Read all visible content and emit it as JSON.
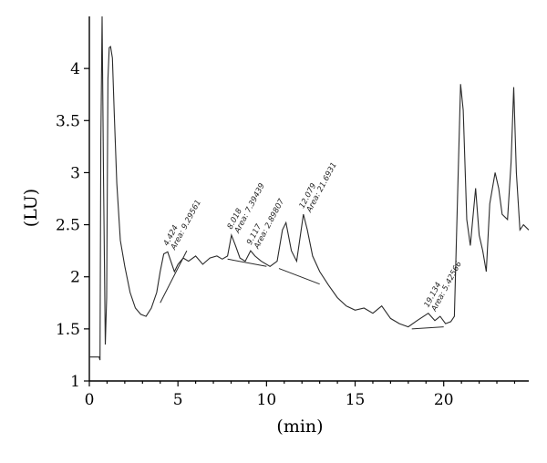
{
  "chart_data": {
    "type": "line",
    "title": "",
    "xlabel": "(min)",
    "ylabel": "(LU)",
    "xlim": [
      0,
      24.8
    ],
    "ylim": [
      1,
      4.5
    ],
    "x_ticks": [
      {
        "value": 0,
        "label": "0"
      },
      {
        "value": 5,
        "label": "5"
      },
      {
        "value": 10,
        "label": "10"
      },
      {
        "value": 15,
        "label": "15"
      },
      {
        "value": 20,
        "label": "20"
      }
    ],
    "y_ticks": [
      {
        "value": 1,
        "label": "1"
      },
      {
        "value": 1.5,
        "label": "1.5"
      },
      {
        "value": 2,
        "label": "2"
      },
      {
        "value": 2.5,
        "label": "2.5"
      },
      {
        "value": 3,
        "label": "3"
      },
      {
        "value": 3.5,
        "label": "3.5"
      },
      {
        "value": 4,
        "label": "4"
      }
    ],
    "grid": false,
    "series": [
      {
        "x": [
          0,
          0.55,
          0.6,
          0.65,
          0.72,
          0.8,
          0.9,
          0.98,
          1.05,
          1.12,
          1.2,
          1.3,
          1.4,
          1.55,
          1.75,
          2.0,
          2.3,
          2.6,
          2.9,
          3.2,
          3.5,
          3.8,
          4.0,
          4.2,
          4.42,
          4.6,
          4.8,
          5.0,
          5.3,
          5.6,
          6.0,
          6.4,
          6.8,
          7.2,
          7.5,
          7.8,
          8.02,
          8.25,
          8.5,
          8.8,
          9.1,
          9.35,
          9.7,
          10.2,
          10.6,
          10.9,
          11.1,
          11.4,
          11.7,
          12.08,
          12.3,
          12.6,
          13.0,
          13.5,
          14.0,
          14.5,
          15.0,
          15.5,
          16.0,
          16.5,
          17.0,
          17.5,
          18.0,
          18.5,
          19.13,
          19.5,
          19.8,
          20.1,
          20.4,
          20.6,
          20.8,
          20.95,
          21.1,
          21.3,
          21.5,
          21.8,
          22.0,
          22.2,
          22.4,
          22.6,
          22.9,
          23.1,
          23.3,
          23.6,
          23.8,
          23.95,
          24.1,
          24.3,
          24.5,
          24.8
        ],
        "y": [
          1.23,
          1.23,
          1.2,
          3.3,
          4.5,
          3.0,
          1.35,
          1.8,
          3.9,
          4.2,
          4.21,
          4.1,
          3.6,
          2.9,
          2.35,
          2.1,
          1.85,
          1.7,
          1.64,
          1.62,
          1.7,
          1.85,
          2.05,
          2.22,
          2.24,
          2.15,
          2.05,
          2.12,
          2.18,
          2.15,
          2.2,
          2.12,
          2.18,
          2.2,
          2.17,
          2.2,
          2.4,
          2.3,
          2.18,
          2.15,
          2.25,
          2.2,
          2.15,
          2.1,
          2.15,
          2.45,
          2.52,
          2.25,
          2.15,
          2.6,
          2.45,
          2.2,
          2.05,
          1.92,
          1.8,
          1.72,
          1.68,
          1.7,
          1.65,
          1.72,
          1.6,
          1.55,
          1.52,
          1.58,
          1.65,
          1.58,
          1.62,
          1.55,
          1.57,
          1.62,
          2.9,
          3.85,
          3.6,
          2.55,
          2.3,
          2.85,
          2.4,
          2.25,
          2.05,
          2.7,
          3.0,
          2.85,
          2.6,
          2.55,
          3.1,
          3.82,
          3.0,
          2.45,
          2.5,
          2.45
        ]
      }
    ],
    "baselines": [
      {
        "x": [
          4.0,
          5.5
        ],
        "y": [
          1.75,
          2.25
        ]
      },
      {
        "x": [
          7.8,
          10.0
        ],
        "y": [
          2.17,
          2.1
        ]
      },
      {
        "x": [
          10.7,
          13.0
        ],
        "y": [
          2.08,
          1.93
        ]
      },
      {
        "x": [
          18.2,
          20.0
        ],
        "y": [
          1.5,
          1.52
        ]
      }
    ],
    "annotations": [
      {
        "x": 4.42,
        "y": 2.24,
        "lines": [
          "4.424",
          "Area: 9.29561"
        ]
      },
      {
        "x": 8.02,
        "y": 2.4,
        "lines": [
          "8.018",
          "Area: 7.39439"
        ]
      },
      {
        "x": 9.12,
        "y": 2.25,
        "lines": [
          "9.117",
          "Area: 2.89807"
        ]
      },
      {
        "x": 12.08,
        "y": 2.6,
        "lines": [
          "12.079",
          "Area: 21.6931"
        ]
      },
      {
        "x": 19.13,
        "y": 1.65,
        "lines": [
          "19.134",
          "Area: 5.42566"
        ]
      }
    ]
  }
}
